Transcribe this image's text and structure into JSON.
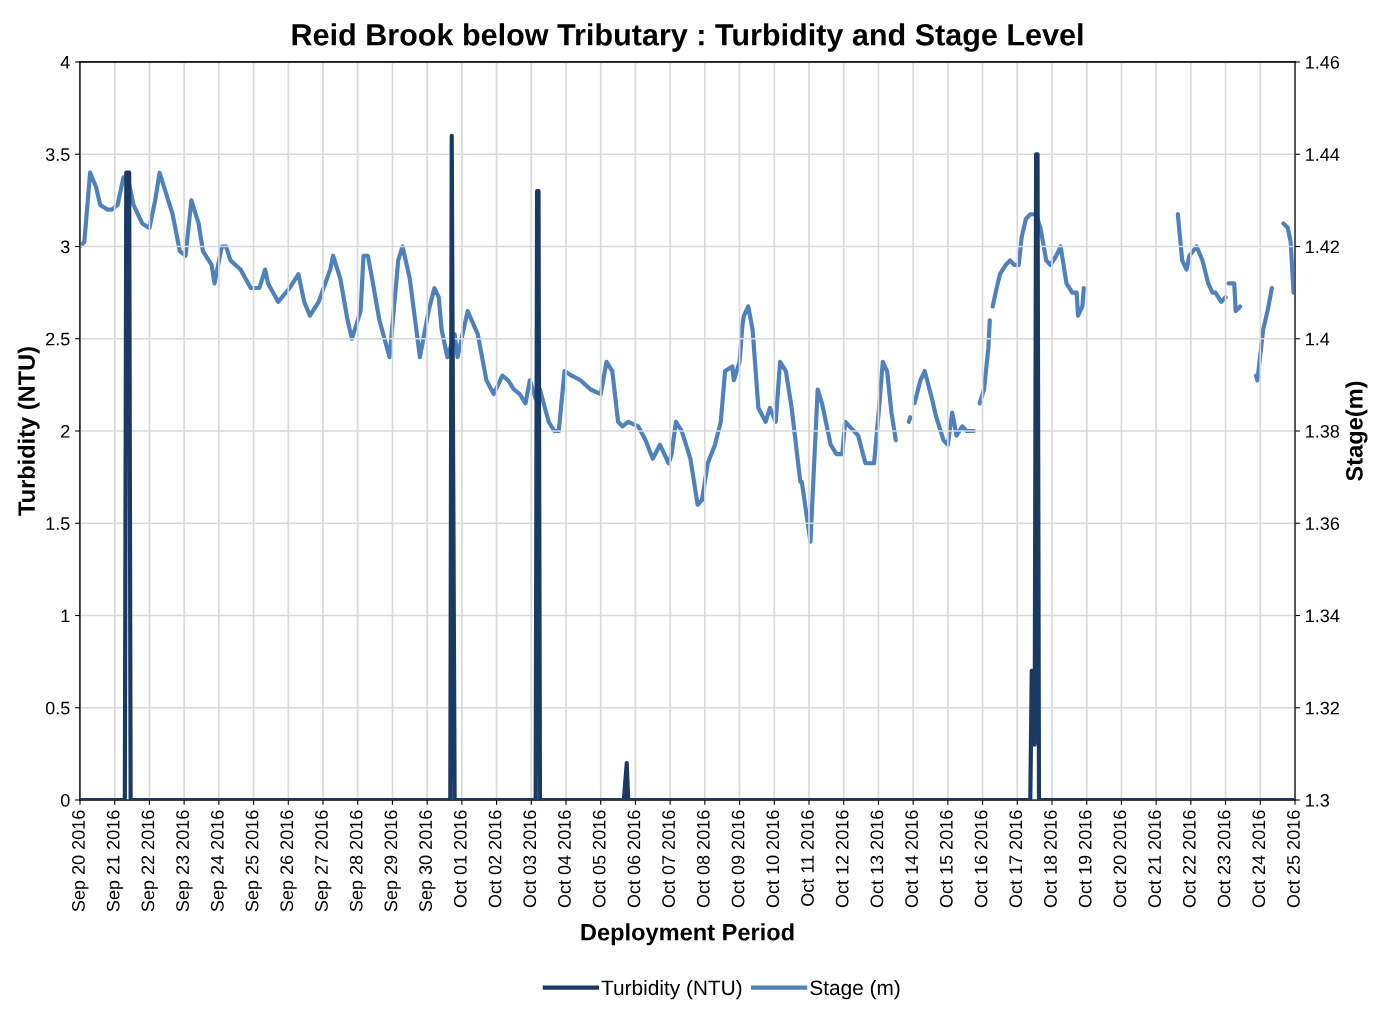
{
  "chart_data": {
    "type": "line",
    "title": "Reid Brook below Tributary : Turbidity and Stage Level",
    "xlabel": "Deployment Period",
    "ylabel": "Turbidity (NTU)",
    "y2label": "Stage(m)",
    "xlim": [
      "2016-09-20",
      "2016-10-25"
    ],
    "xticks": [
      {
        "value": "2016-09-20",
        "label": "Sep 20 2016"
      },
      {
        "value": "2016-09-21",
        "label": "Sep 21 2016"
      },
      {
        "value": "2016-09-22",
        "label": "Sep 22 2016"
      },
      {
        "value": "2016-09-23",
        "label": "Sep 23 2016"
      },
      {
        "value": "2016-09-24",
        "label": "Sep 24 2016"
      },
      {
        "value": "2016-09-25",
        "label": "Sep 25 2016"
      },
      {
        "value": "2016-09-26",
        "label": "Sep 26 2016"
      },
      {
        "value": "2016-09-27",
        "label": "Sep 27 2016"
      },
      {
        "value": "2016-09-28",
        "label": "Sep 28 2016"
      },
      {
        "value": "2016-09-29",
        "label": "Sep 29 2016"
      },
      {
        "value": "2016-09-30",
        "label": "Sep 30 2016"
      },
      {
        "value": "2016-10-01",
        "label": "Oct 01 2016"
      },
      {
        "value": "2016-10-02",
        "label": "Oct 02 2016"
      },
      {
        "value": "2016-10-03",
        "label": "Oct 03 2016"
      },
      {
        "value": "2016-10-04",
        "label": "Oct 04 2016"
      },
      {
        "value": "2016-10-05",
        "label": "Oct 05 2016"
      },
      {
        "value": "2016-10-06",
        "label": "Oct 06 2016"
      },
      {
        "value": "2016-10-07",
        "label": "Oct 07 2016"
      },
      {
        "value": "2016-10-08",
        "label": "Oct 08 2016"
      },
      {
        "value": "2016-10-09",
        "label": "Oct 09 2016"
      },
      {
        "value": "2016-10-10",
        "label": "Oct 10 2016"
      },
      {
        "value": "2016-10-11",
        "label": "Oct 11 2016"
      },
      {
        "value": "2016-10-12",
        "label": "Oct 12 2016"
      },
      {
        "value": "2016-10-13",
        "label": "Oct 13 2016"
      },
      {
        "value": "2016-10-14",
        "label": "Oct 14 2016"
      },
      {
        "value": "2016-10-15",
        "label": "Oct 15 2016"
      },
      {
        "value": "2016-10-16",
        "label": "Oct 16 2016"
      },
      {
        "value": "2016-10-17",
        "label": "Oct 17 2016"
      },
      {
        "value": "2016-10-18",
        "label": "Oct 18 2016"
      },
      {
        "value": "2016-10-19",
        "label": "Oct 19 2016"
      },
      {
        "value": "2016-10-20",
        "label": "Oct 20 2016"
      },
      {
        "value": "2016-10-21",
        "label": "Oct 21 2016"
      },
      {
        "value": "2016-10-22",
        "label": "Oct 22 2016"
      },
      {
        "value": "2016-10-23",
        "label": "Oct 23 2016"
      },
      {
        "value": "2016-10-24",
        "label": "Oct 24 2016"
      },
      {
        "value": "2016-10-25",
        "label": "Oct 25 2016"
      }
    ],
    "ylim": [
      0,
      4
    ],
    "yticks": [
      0,
      0.5,
      1,
      1.5,
      2,
      2.5,
      3,
      3.5,
      4
    ],
    "y2lim": [
      1.3,
      1.46
    ],
    "y2ticks": [
      1.3,
      1.32,
      1.34,
      1.36,
      1.38,
      1.4,
      1.42,
      1.44,
      1.46
    ],
    "grid": true,
    "legend": "bottom",
    "line_style": "solid",
    "marker": "none",
    "series": [
      {
        "name": "Turbidity (NTU)",
        "color": "#1b3a63",
        "x": [
          "2016-09-20T00:00",
          "2016-09-21T07:00",
          "2016-09-21T08:00",
          "2016-09-21T10:00",
          "2016-09-21T11:00",
          "2016-09-30T16:00",
          "2016-09-30T17:00",
          "2016-09-30T19:00",
          "2016-10-03T03:00",
          "2016-10-03T04:00",
          "2016-10-03T05:00",
          "2016-10-03T06:00",
          "2016-10-05T16:00",
          "2016-10-05T18:00",
          "2016-10-05T19:00",
          "2016-10-17T09:00",
          "2016-10-17T10:00",
          "2016-10-17T12:00",
          "2016-10-17T13:00",
          "2016-10-17T14:00",
          "2016-10-17T15:00",
          "2016-10-25T00:00"
        ],
        "values": [
          0,
          0,
          3.4,
          3.4,
          0,
          0,
          3.6,
          0,
          0,
          3.3,
          3.3,
          0,
          0,
          0.2,
          0,
          0,
          0.7,
          0.3,
          3.5,
          3.5,
          0,
          0
        ]
      },
      {
        "name": "Stage (m)",
        "color": "#4f81bd",
        "axis": "y2",
        "x": [
          "2016-09-20T00:00",
          "2016-09-20T03:00",
          "2016-09-20T07:00",
          "2016-09-20T11:00",
          "2016-09-20T14:00",
          "2016-09-20T19:00",
          "2016-09-20T22:00",
          "2016-09-21T02:00",
          "2016-09-21T06:00",
          "2016-09-21T09:00",
          "2016-09-21T13:00",
          "2016-09-21T19:00",
          "2016-09-22T00:00",
          "2016-09-22T04:00",
          "2016-09-22T07:00",
          "2016-09-22T11:00",
          "2016-09-22T16:00",
          "2016-09-22T21:00",
          "2016-09-23T01:00",
          "2016-09-23T05:00",
          "2016-09-23T10:00",
          "2016-09-23T13:00",
          "2016-09-23T19:00",
          "2016-09-23T21:00",
          "2016-09-24T02:00",
          "2016-09-24T05:00",
          "2016-09-24T08:00",
          "2016-09-24T15:00",
          "2016-09-24T22:00",
          "2016-09-25T04:00",
          "2016-09-25T08:00",
          "2016-09-25T10:00",
          "2016-09-25T17:00",
          "2016-09-26T01:00",
          "2016-09-26T07:00",
          "2016-09-26T11:00",
          "2016-09-26T15:00",
          "2016-09-26T21:00",
          "2016-09-27T05:00",
          "2016-09-27T07:00",
          "2016-09-27T12:00",
          "2016-09-27T17:00",
          "2016-09-27T20:00",
          "2016-09-28T02:00",
          "2016-09-28T04:00",
          "2016-09-28T07:00",
          "2016-09-28T10:00",
          "2016-09-28T15:00",
          "2016-09-28T22:00",
          "2016-09-29T04:00",
          "2016-09-29T07:00",
          "2016-09-29T12:00",
          "2016-09-29T19:00",
          "2016-09-30T01:00",
          "2016-09-30T05:00",
          "2016-09-30T08:00",
          "2016-09-30T10:00",
          "2016-09-30T14:00",
          "2016-09-30T19:00",
          "2016-09-30T21:00",
          "2016-10-01T04:00",
          "2016-10-01T11:00",
          "2016-10-01T17:00",
          "2016-10-01T22:00",
          "2016-10-02T04:00",
          "2016-10-02T08:00",
          "2016-10-02T12:00",
          "2016-10-02T16:00",
          "2016-10-02T20:00",
          "2016-10-02T23:00",
          "2016-10-03T03:00",
          "2016-10-03T06:00",
          "2016-10-03T12:00",
          "2016-10-03T16:00",
          "2016-10-03T19:00",
          "2016-10-03T23:00",
          "2016-10-04T04:00",
          "2016-10-04T10:00",
          "2016-10-04T17:00",
          "2016-10-05T00:00",
          "2016-10-05T04:00",
          "2016-10-05T08:00",
          "2016-10-05T12:00",
          "2016-10-05T15:00",
          "2016-10-05T19:00",
          "2016-10-06T02:00",
          "2016-10-06T07:00",
          "2016-10-06T12:00",
          "2016-10-06T17:00",
          "2016-10-06T23:00",
          "2016-10-07T01:00",
          "2016-10-07T04:00",
          "2016-10-07T08:00",
          "2016-10-07T14:00",
          "2016-10-07T19:00",
          "2016-10-07T22:00",
          "2016-10-08T02:00",
          "2016-10-08T07:00",
          "2016-10-08T11:00",
          "2016-10-08T14:00",
          "2016-10-08T19:00",
          "2016-10-08T20:00",
          "2016-10-09T00:00",
          "2016-10-09T02:00",
          "2016-10-09T03:00",
          "2016-10-09T06:00",
          "2016-10-09T09:00",
          "2016-10-09T13:00",
          "2016-10-09T18:00",
          "2016-10-09T21:00",
          "2016-10-10T01:00",
          "2016-10-10T04:00",
          "2016-10-10T08:00",
          "2016-10-10T12:00",
          "2016-10-10T18:00",
          "2016-10-10T19:00",
          "2016-10-11T01:00",
          "2016-10-11T06:00",
          "2016-10-11T09:00",
          "2016-10-11T15:00",
          "2016-10-11T19:00",
          "2016-10-11T23:00",
          "2016-10-12T01:00",
          "2016-10-12T04:00",
          "2016-10-12T10:00",
          "2016-10-12T15:00",
          "2016-10-12T21:00",
          "2016-10-13T01:00",
          "2016-10-13T03:00",
          "2016-10-13T06:00",
          "2016-10-13T09:00",
          "2016-10-13T12:00",
          "2016-10-13T16:00",
          "2016-10-13T21:00",
          "2016-10-13T22:00",
          "2016-10-13T23:30",
          "2016-10-14T01:00",
          "2016-10-14T05:00",
          "2016-10-14T08:00",
          "2016-10-14T13:00",
          "2016-10-14T16:00",
          "2016-10-14T21:00",
          "2016-10-15T00:00",
          "2016-10-15T03:00",
          "2016-10-15T06:00",
          "2016-10-15T10:00",
          "2016-10-15T13:00",
          "2016-10-15T18:00",
          "2016-10-15T20:00",
          "2016-10-15T22:00",
          "2016-10-16T01:00",
          "2016-10-16T04:00",
          "2016-10-16T05:00",
          "2016-10-16T06:00",
          "2016-10-16T07:00",
          "2016-10-16T09:00",
          "2016-10-16T12:00",
          "2016-10-16T16:00",
          "2016-10-16T19:00",
          "2016-10-16T22:00",
          "2016-10-17T01:00",
          "2016-10-17T03:00",
          "2016-10-17T06:00",
          "2016-10-17T09:00",
          "2016-10-17T13:00",
          "2016-10-17T16:00",
          "2016-10-17T20:00",
          "2016-10-17T23:00",
          "2016-10-18T03:00",
          "2016-10-18T06:00",
          "2016-10-18T10:00",
          "2016-10-18T14:00",
          "2016-10-18T17:00",
          "2016-10-18T18:00",
          "2016-10-18T21:00",
          "2016-10-18T22:00",
          "2016-10-20T00:00",
          "2016-10-21T15:00",
          "2016-10-21T18:00",
          "2016-10-21T21:00",
          "2016-10-21T23:00",
          "2016-10-22T04:00",
          "2016-10-22T08:00",
          "2016-10-22T12:00",
          "2016-10-22T15:00",
          "2016-10-22T17:00",
          "2016-10-22T21:00",
          "2016-10-23T00:00",
          "2016-10-23T01:00",
          "2016-10-23T02:00",
          "2016-10-23T06:00",
          "2016-10-23T07:00",
          "2016-10-23T10:00",
          "2016-10-23T15:00",
          "2016-10-23T21:00",
          "2016-10-23T22:00",
          "2016-10-24T02:00",
          "2016-10-24T05:00",
          "2016-10-24T08:00",
          "2016-10-24T12:00",
          "2016-10-24T16:00",
          "2016-10-24T19:00",
          "2016-10-24T21:00",
          "2016-10-24T23:00",
          "2016-10-25T00:00"
        ],
        "values": [
          1.42,
          1.421,
          1.436,
          1.433,
          1.429,
          1.428,
          1.428,
          1.429,
          1.435,
          1.435,
          1.429,
          1.425,
          1.424,
          1.43,
          1.436,
          1.432,
          1.427,
          1.419,
          1.418,
          1.43,
          1.425,
          1.419,
          1.416,
          1.412,
          1.42,
          1.42,
          1.417,
          1.415,
          1.411,
          1.411,
          1.415,
          1.412,
          1.408,
          1.411,
          1.414,
          1.408,
          1.405,
          1.408,
          1.415,
          1.418,
          1.413,
          1.404,
          1.4,
          1.406,
          1.418,
          1.418,
          1.413,
          1.404,
          1.396,
          1.417,
          1.42,
          1.413,
          1.396,
          1.406,
          1.411,
          1.409,
          1.402,
          1.396,
          1.401,
          1.396,
          1.406,
          1.401,
          1.391,
          1.388,
          1.392,
          1.391,
          1.389,
          1.388,
          1.386,
          1.391,
          1.387,
          1.389,
          1.382,
          1.38,
          1.38,
          1.393,
          1.392,
          1.391,
          1.389,
          1.388,
          1.395,
          1.393,
          1.382,
          1.381,
          1.382,
          1.381,
          1.378,
          1.374,
          1.377,
          1.373,
          1.375,
          1.382,
          1.38,
          1.374,
          1.364,
          1.365,
          1.373,
          1.377,
          1.382,
          1.393,
          1.394,
          1.391,
          1.395,
          1.403,
          1.405,
          1.407,
          1.402,
          1.385,
          1.382,
          1.385,
          1.382,
          1.395,
          1.393,
          1.385,
          1.369,
          1.369,
          1.356,
          1.389,
          1.386,
          1.377,
          1.375,
          1.375,
          1.382,
          1.381,
          1.379,
          1.373,
          1.373,
          1.387,
          1.395,
          1.393,
          1.384,
          1.378,
          null,
          1.382,
          1.383,
          null,
          1.386,
          1.391,
          1.393,
          1.387,
          1.383,
          1.378,
          1.377,
          1.384,
          1.379,
          1.381,
          1.38,
          1.38,
          null,
          1.386,
          1.389,
          1.398,
          1.404,
          null,
          1.407,
          1.41,
          1.414,
          1.416,
          1.417,
          1.416,
          1.416,
          1.422,
          1.426,
          1.427,
          1.427,
          1.424,
          1.417,
          1.416,
          1.418,
          1.42,
          1.412,
          1.41,
          1.41,
          1.405,
          1.407,
          1.411,
          null,
          1.427,
          1.417,
          1.415,
          1.418,
          1.42,
          1.417,
          1.412,
          1.41,
          1.41,
          1.408,
          1.409,
          null,
          1.412,
          1.412,
          1.406,
          1.407,
          null,
          1.392,
          1.391,
          1.402,
          1.406,
          1.411,
          null,
          1.425,
          1.424,
          1.421,
          1.41,
          1.415
        ]
      }
    ]
  }
}
